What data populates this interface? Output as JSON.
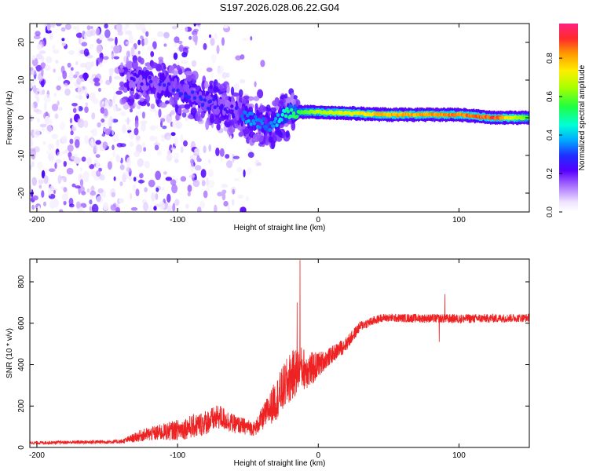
{
  "title": "S197.2026.028.06.22.G04",
  "chart_data": [
    {
      "type": "heatmap",
      "name": "spectrogram",
      "xlabel": "Height of straight line (km)",
      "ylabel": "Frequency (Hz)",
      "xlim": [
        -205,
        150
      ],
      "ylim": [
        -25,
        25
      ],
      "xticks": [
        -200,
        -100,
        0,
        100
      ],
      "yticks": [
        -20,
        -10,
        0,
        10,
        20
      ],
      "colorbar": {
        "label": "Normalized spectral amplitude",
        "range": [
          0,
          0.98
        ],
        "ticks": [
          "0.0",
          "0.2",
          "0.4",
          "0.6",
          "0.8"
        ],
        "tick_values": [
          0,
          0.2,
          0.4,
          0.6,
          0.8
        ]
      },
      "signal_track": [
        {
          "x": -130,
          "freq": 10,
          "amp": 0.25
        },
        {
          "x": -100,
          "freq": 8,
          "amp": 0.3
        },
        {
          "x": -80,
          "freq": 4,
          "amp": 0.3
        },
        {
          "x": -60,
          "freq": 2,
          "amp": 0.25
        },
        {
          "x": -50,
          "freq": 0,
          "amp": 0.4
        },
        {
          "x": -35,
          "freq": -2,
          "amp": 0.35
        },
        {
          "x": -20,
          "freq": 1.5,
          "amp": 0.55
        },
        {
          "x": 0,
          "freq": 1.5,
          "amp": 0.7
        },
        {
          "x": 50,
          "freq": 0.8,
          "amp": 0.85
        },
        {
          "x": 100,
          "freq": 0.8,
          "amp": 0.9
        },
        {
          "x": 125,
          "freq": 0,
          "amp": 0.95
        },
        {
          "x": 150,
          "freq": 0,
          "amp": 0.6
        }
      ]
    },
    {
      "type": "line",
      "name": "snr",
      "xlabel": "Height of straight line (km)",
      "ylabel": "SNR (10 * v/v)",
      "xlim": [
        -205,
        150
      ],
      "ylim": [
        0,
        910
      ],
      "xticks": [
        -200,
        -100,
        0,
        100
      ],
      "yticks": [
        0,
        200,
        400,
        600,
        800
      ],
      "color": "#ee2222",
      "envelope": [
        {
          "x": -205,
          "base": 20,
          "amp": 15
        },
        {
          "x": -140,
          "base": 25,
          "amp": 20
        },
        {
          "x": -125,
          "base": 50,
          "amp": 60
        },
        {
          "x": -100,
          "base": 70,
          "amp": 100
        },
        {
          "x": -85,
          "base": 90,
          "amp": 120
        },
        {
          "x": -70,
          "base": 130,
          "amp": 120
        },
        {
          "x": -60,
          "base": 100,
          "amp": 90
        },
        {
          "x": -45,
          "base": 80,
          "amp": 70
        },
        {
          "x": -30,
          "base": 200,
          "amp": 200
        },
        {
          "x": -20,
          "base": 300,
          "amp": 250
        },
        {
          "x": -13,
          "base": 350,
          "amp": 220
        },
        {
          "x": -5,
          "base": 350,
          "amp": 170
        },
        {
          "x": 5,
          "base": 410,
          "amp": 90
        },
        {
          "x": 20,
          "base": 490,
          "amp": 70
        },
        {
          "x": 30,
          "base": 580,
          "amp": 50
        },
        {
          "x": 45,
          "base": 620,
          "amp": 40
        },
        {
          "x": 100,
          "base": 615,
          "amp": 45
        },
        {
          "x": 150,
          "base": 620,
          "amp": 40
        }
      ],
      "spikes": [
        {
          "x": -13,
          "y": 905
        },
        {
          "x": -15,
          "y": 700
        },
        {
          "x": 90,
          "y": 740
        },
        {
          "x": 86,
          "y": 510
        }
      ]
    }
  ]
}
